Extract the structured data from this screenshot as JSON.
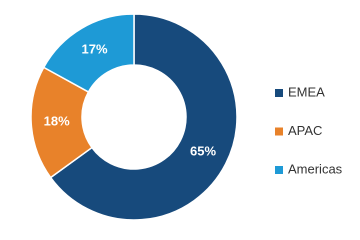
{
  "chart_data": {
    "type": "donut",
    "categories": [
      "EMEA",
      "APAC",
      "Americas"
    ],
    "values": [
      65,
      18,
      17
    ],
    "value_labels": [
      "65%",
      "18%",
      "17%"
    ],
    "colors": [
      "#174a7c",
      "#e8822a",
      "#1e9ad6"
    ],
    "legend": "right"
  }
}
